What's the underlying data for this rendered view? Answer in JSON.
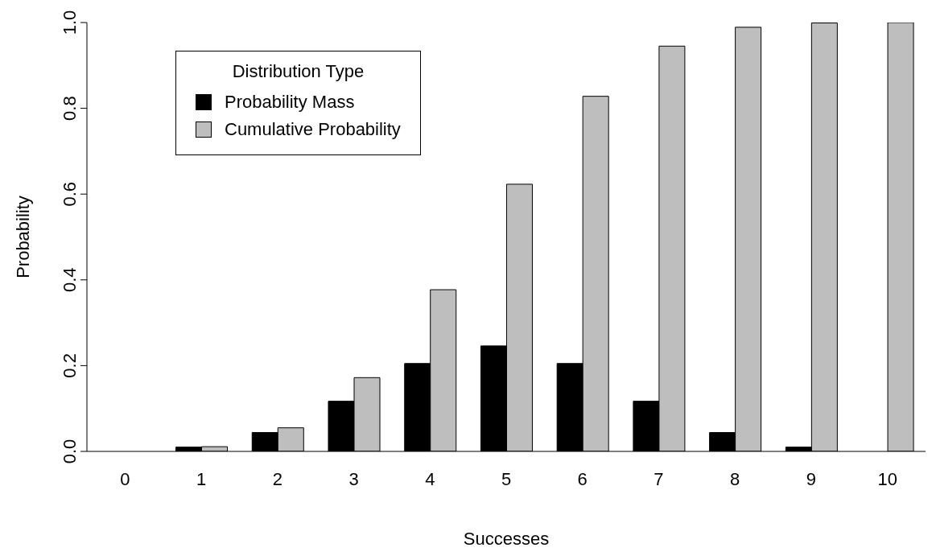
{
  "chart_data": {
    "type": "bar",
    "xlabel": "Successes",
    "ylabel": "Probability",
    "legend_title": "Distribution Type",
    "legend": "top left",
    "grid": false,
    "categories": [
      "0",
      "1",
      "2",
      "3",
      "4",
      "5",
      "6",
      "7",
      "8",
      "9",
      "10"
    ],
    "series": [
      {
        "name": "Probability Mass",
        "color": "#000000",
        "values": [
          null,
          0.01,
          0.044,
          0.117,
          0.205,
          0.246,
          0.205,
          0.117,
          0.044,
          0.01,
          null
        ]
      },
      {
        "name": "Cumulative Probability",
        "color": "#bebebe",
        "values": [
          null,
          0.011,
          0.055,
          0.172,
          0.377,
          0.623,
          0.828,
          0.945,
          0.989,
          0.999,
          1.0
        ]
      }
    ],
    "ylim": [
      0,
      1
    ],
    "yticks": [
      {
        "value": 0,
        "label": "0.0"
      },
      {
        "value": 0.2,
        "label": "0.2"
      },
      {
        "value": 0.4,
        "label": "0.4"
      },
      {
        "value": 0.6,
        "label": "0.6"
      },
      {
        "value": 0.8,
        "label": "0.8"
      },
      {
        "value": 1,
        "label": "1.0"
      }
    ]
  }
}
